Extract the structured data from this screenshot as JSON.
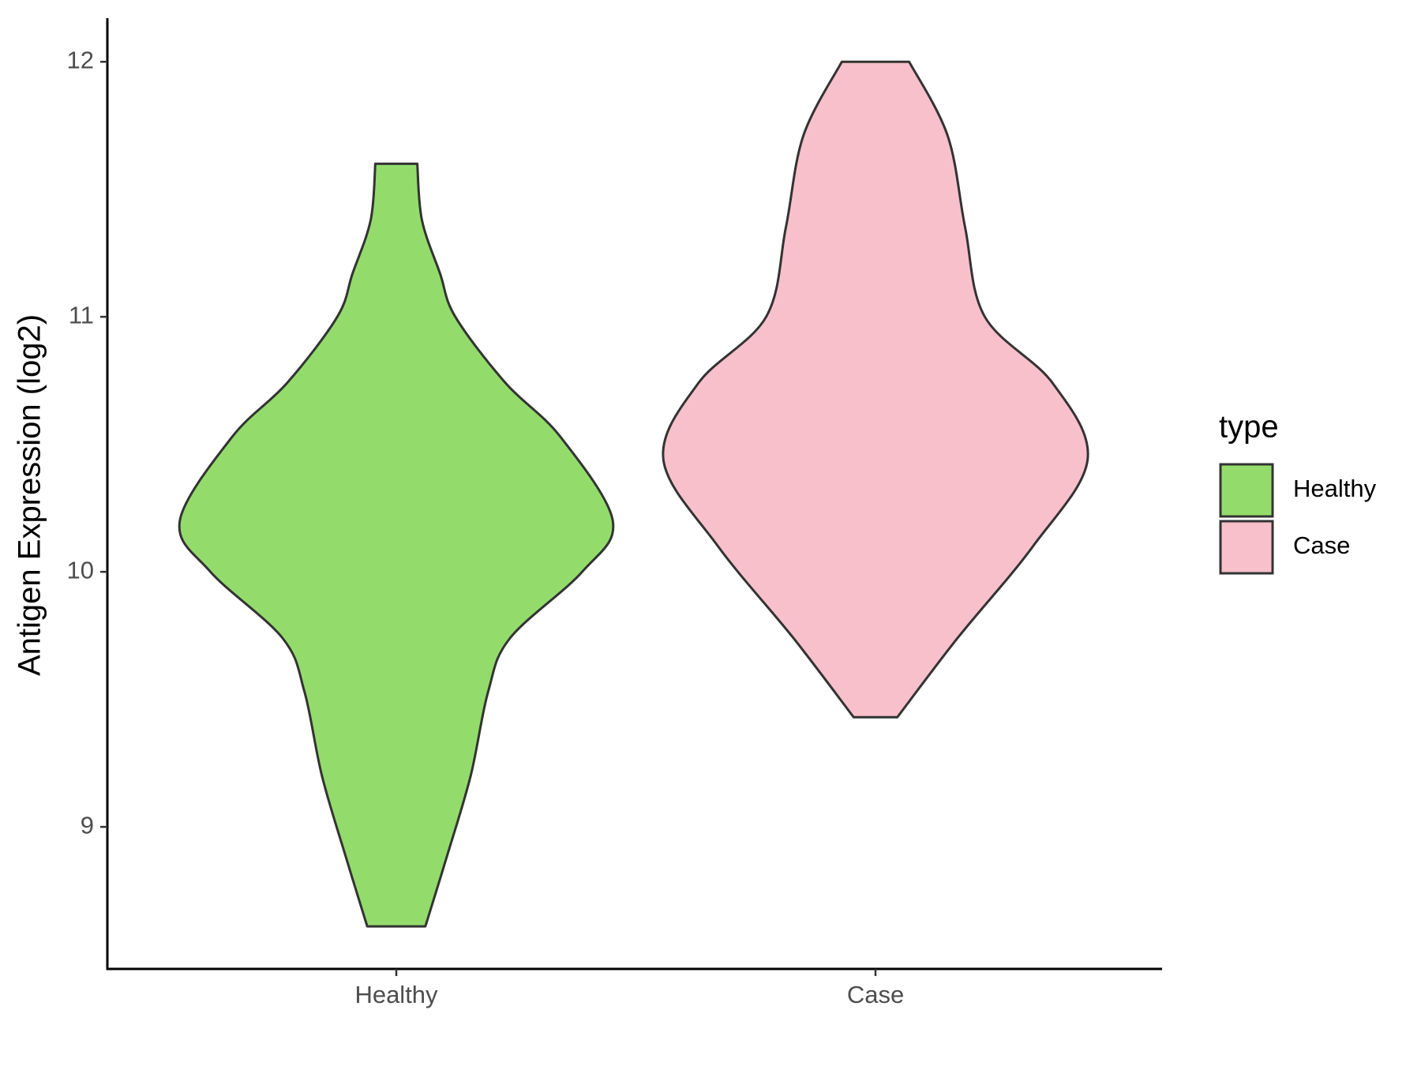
{
  "chart_data": {
    "type": "violin",
    "y_label": "Antigen Expression (log2)",
    "categories": [
      "Healthy",
      "Case"
    ],
    "series": [
      {
        "name": "Healthy",
        "color": "#93dc6b",
        "y": [
          8.61,
          8.88,
          9.2,
          9.53,
          9.74,
          10.0,
          10.2,
          10.53,
          10.74,
          11.0,
          11.17,
          11.38,
          11.6
        ],
        "density": [
          0.133,
          0.23,
          0.34,
          0.42,
          0.52,
          0.85,
          0.99,
          0.75,
          0.5,
          0.27,
          0.2,
          0.117,
          0.096
        ]
      },
      {
        "name": "Case",
        "color": "#f8c0cb",
        "y": [
          9.43,
          9.74,
          10.1,
          10.44,
          10.74,
          11.0,
          11.35,
          11.71,
          12.0
        ],
        "density": [
          0.1,
          0.375,
          0.72,
          0.97,
          0.81,
          0.5,
          0.41,
          0.33,
          0.154
        ]
      }
    ],
    "ylim": [
      8.443,
      12.171
    ],
    "yticks": [
      9,
      10,
      11,
      12
    ],
    "legend_title": "type",
    "legend": "right"
  }
}
